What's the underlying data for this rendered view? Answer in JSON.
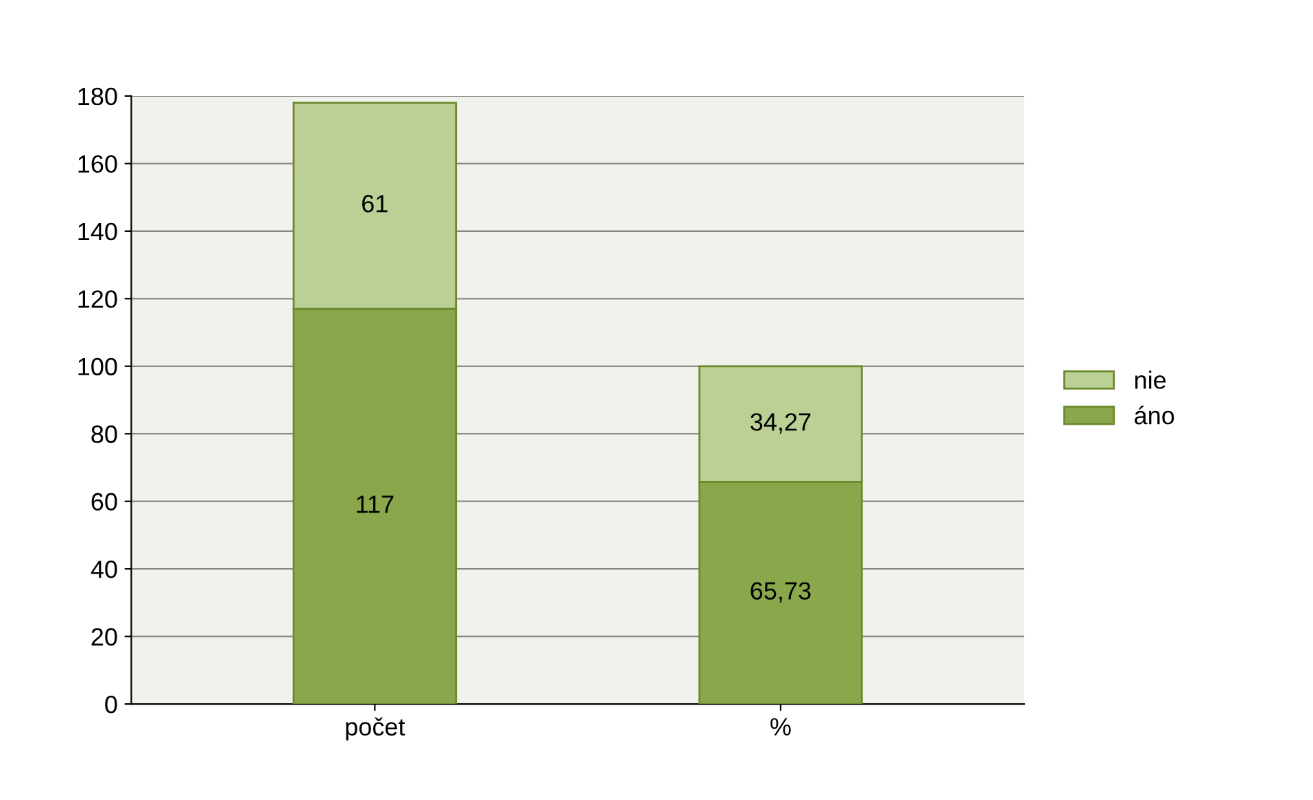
{
  "chart_data": {
    "type": "bar",
    "stacked": true,
    "categories": [
      "počet",
      "%"
    ],
    "series": [
      {
        "name": "áno",
        "color": "#8aa84b",
        "values": [
          117,
          65.73
        ],
        "value_labels": [
          "117",
          "65,73"
        ]
      },
      {
        "name": "nie",
        "color": "#bccf95",
        "values": [
          61,
          34.27
        ],
        "value_labels": [
          "61",
          "34,27"
        ]
      }
    ],
    "ylim": [
      0,
      180
    ],
    "yticks": [
      0,
      20,
      40,
      60,
      80,
      100,
      120,
      140,
      160,
      180
    ],
    "grid": "y",
    "legend": "right"
  }
}
